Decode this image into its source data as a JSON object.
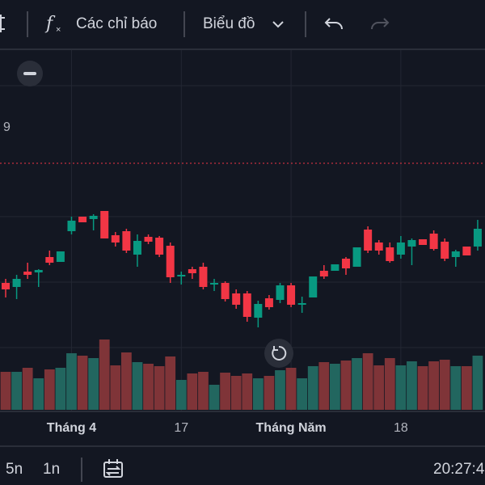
{
  "toolbar": {
    "indicators": "Các chỉ báo",
    "chart_style": "Biểu đồ"
  },
  "chart_data": {
    "type": "candlestick",
    "axis_label": "9",
    "categories": [
      null,
      null,
      null,
      null,
      null,
      null,
      "Tháng 4",
      null,
      null,
      null,
      null,
      null,
      null,
      null,
      null,
      null,
      "17",
      null,
      null,
      null,
      null,
      null,
      null,
      null,
      null,
      null,
      "Tháng Năm",
      null,
      null,
      null,
      null,
      null,
      null,
      null,
      null,
      null,
      "18",
      null,
      null,
      null,
      null,
      null,
      null,
      null
    ],
    "open": [
      150,
      145,
      164,
      163,
      182,
      176,
      214,
      232,
      229,
      239,
      209,
      214,
      185,
      207,
      206,
      196,
      158,
      167,
      170,
      148,
      150,
      137,
      137,
      107,
      131,
      129,
      147,
      123,
      132,
      165,
      165,
      180,
      170,
      216,
      200,
      194,
      185,
      195,
      204,
      211,
      201,
      182,
      195,
      195
    ],
    "high": [
      155,
      160,
      175,
      167,
      190,
      189,
      232,
      232,
      235,
      239,
      213,
      217,
      210,
      210,
      208,
      200,
      164,
      170,
      175,
      155,
      152,
      142,
      140,
      128,
      135,
      150,
      150,
      133,
      158,
      172,
      173,
      182,
      194,
      220,
      203,
      200,
      208,
      205,
      204,
      215,
      205,
      191,
      195,
      228
    ],
    "low": [
      132,
      130,
      155,
      145,
      172,
      176,
      210,
      225,
      215,
      205,
      195,
      187,
      170,
      198,
      182,
      150,
      148,
      155,
      142,
      140,
      127,
      118,
      102,
      95,
      117,
      125,
      120,
      113,
      132,
      155,
      165,
      160,
      170,
      187,
      185,
      175,
      180,
      172,
      197,
      190,
      177,
      170,
      184,
      190
    ],
    "close": [
      142,
      155,
      160,
      166,
      175,
      189,
      227,
      225,
      233,
      205,
      200,
      190,
      202,
      201,
      185,
      157,
      160,
      162,
      145,
      150,
      130,
      123,
      108,
      124,
      120,
      147,
      123,
      125,
      158,
      158,
      173,
      168,
      194,
      190,
      190,
      177,
      200,
      203,
      197,
      192,
      180,
      189,
      184,
      217
    ],
    "volume": [
      47,
      47,
      52,
      39,
      50,
      52,
      70,
      67,
      64,
      87,
      55,
      71,
      59,
      57,
      54,
      66,
      37,
      45,
      47,
      31,
      46,
      42,
      45,
      39,
      42,
      49,
      52,
      39,
      54,
      59,
      57,
      61,
      64,
      70,
      55,
      64,
      55,
      60,
      54,
      60,
      62,
      54,
      54,
      67
    ],
    "ylim": [
      0,
      440
    ],
    "y2lim": [
      0,
      200
    ],
    "up_color": "#089981",
    "down_color": "#f23645",
    "up_volume_color": "#22665f",
    "down_volume_color": "#7f3438"
  },
  "bottom_bar": {
    "ranges": [
      "5n",
      "1n"
    ],
    "time": "20:27:4"
  }
}
